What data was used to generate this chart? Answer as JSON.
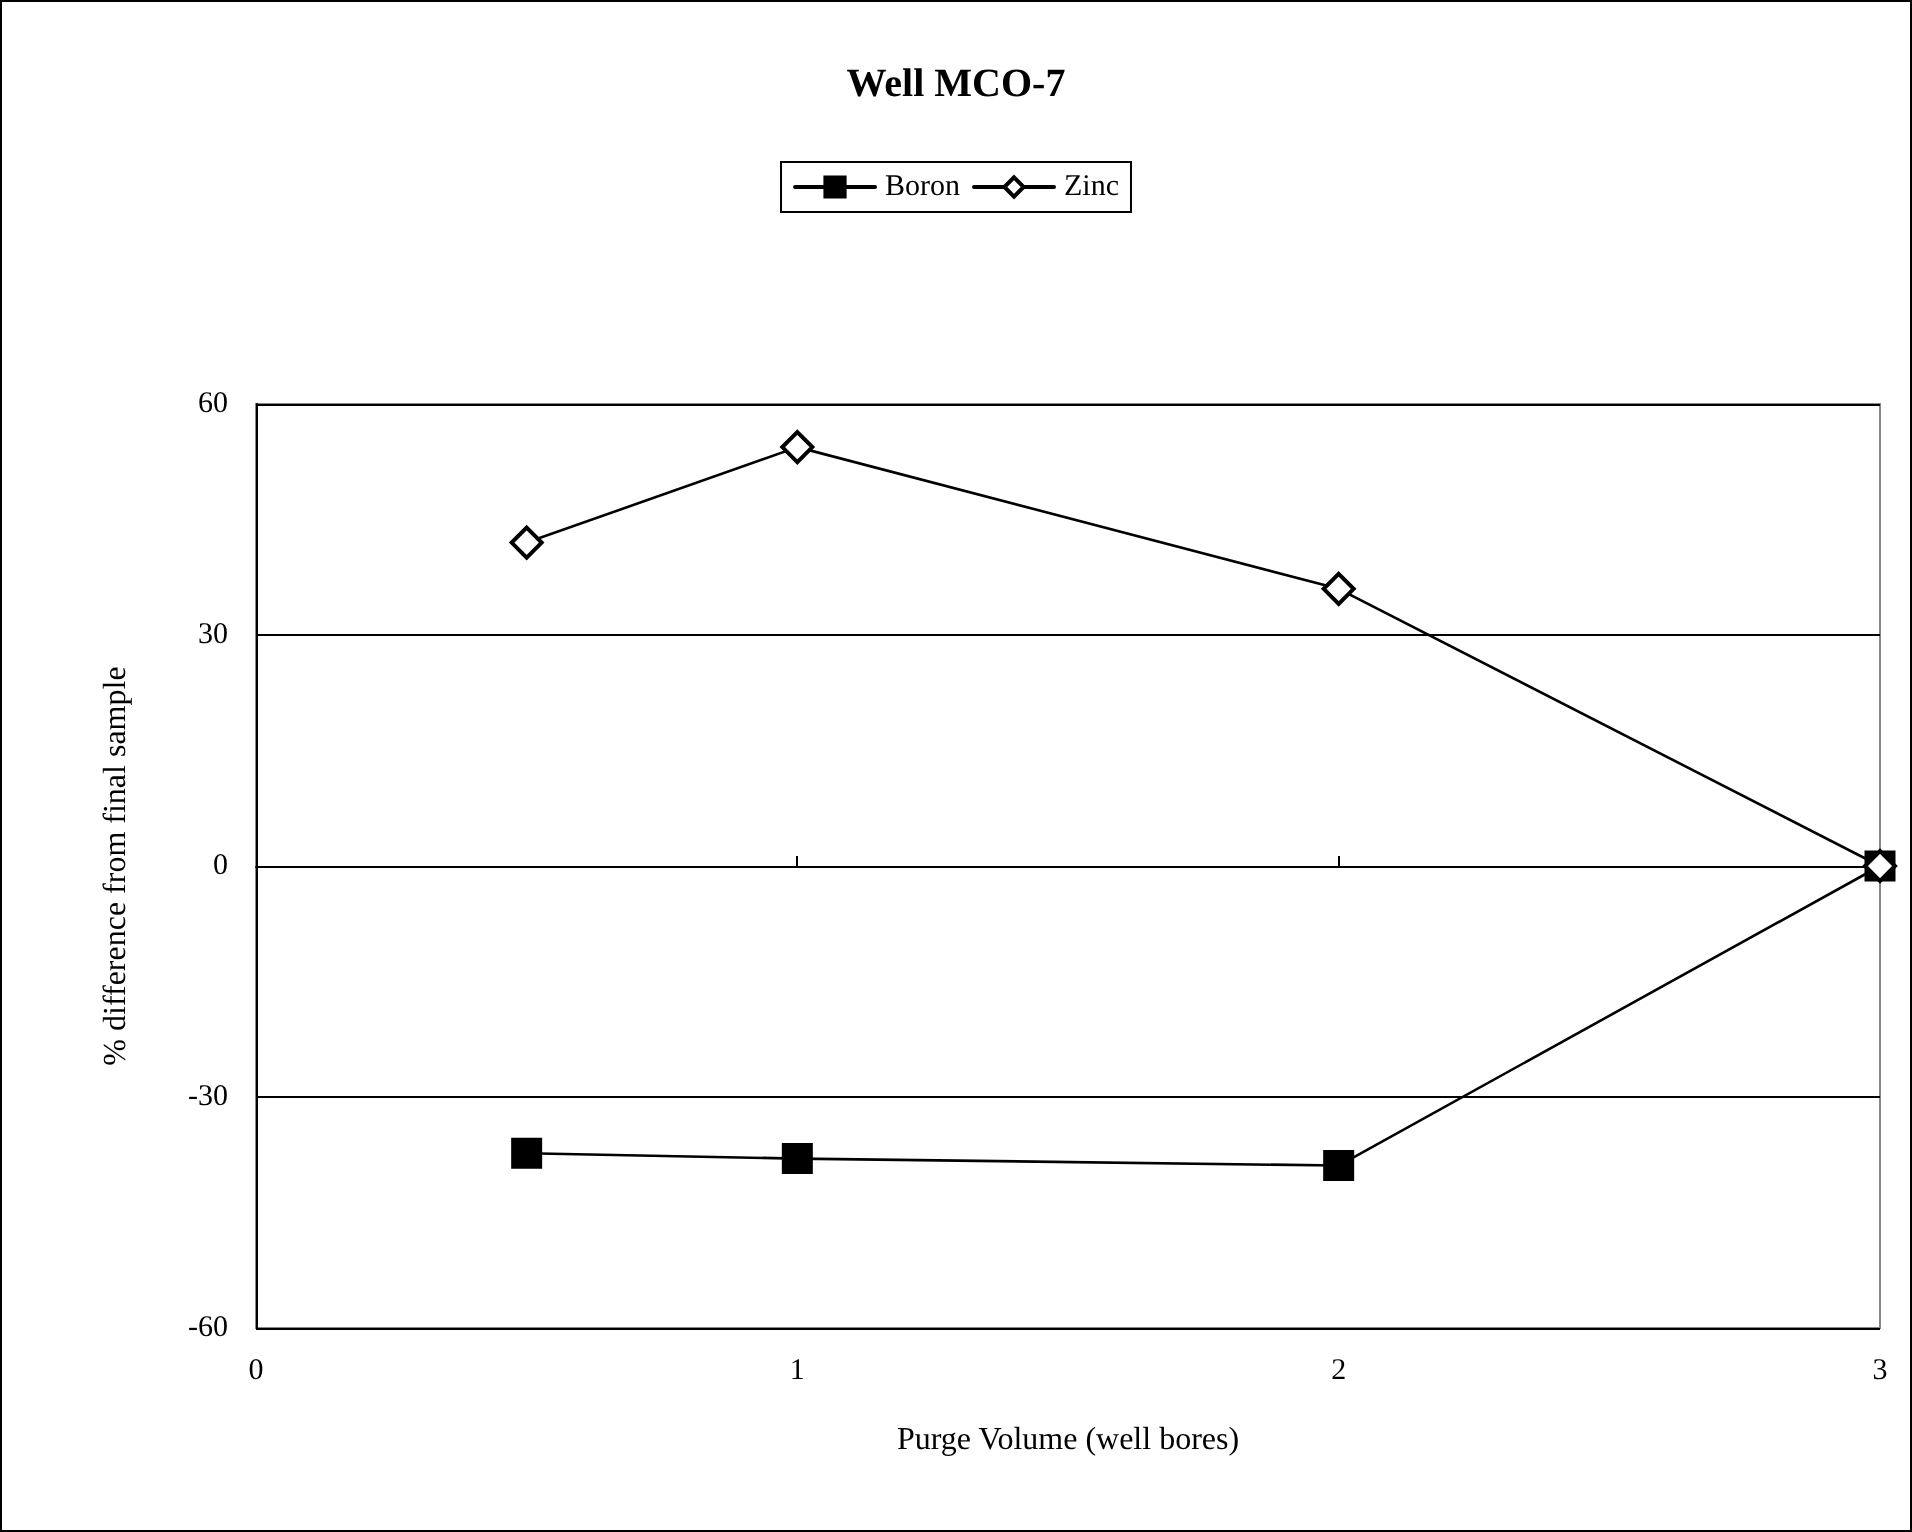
{
  "chart_data": {
    "type": "line",
    "title": "Well MCO-7",
    "xlabel": "Purge Volume (well bores)",
    "ylabel": "% difference from final sample",
    "x": [
      0.5,
      1,
      2,
      3
    ],
    "series": [
      {
        "name": "Boron",
        "color": "#000000",
        "marker": "square",
        "values": [
          -37.3,
          -38,
          -38.9,
          0
        ]
      },
      {
        "name": "Zinc",
        "color": "#000000",
        "marker": "diamond",
        "values": [
          42,
          54.4,
          36,
          0
        ]
      }
    ],
    "xlim": [
      0,
      3
    ],
    "xticks": [
      0,
      1,
      2,
      3
    ],
    "ylim": [
      -60,
      60
    ],
    "yticks": [
      -60,
      -30,
      0,
      30,
      60
    ],
    "grid": "y",
    "legend": "top",
    "line_style": "solid"
  }
}
